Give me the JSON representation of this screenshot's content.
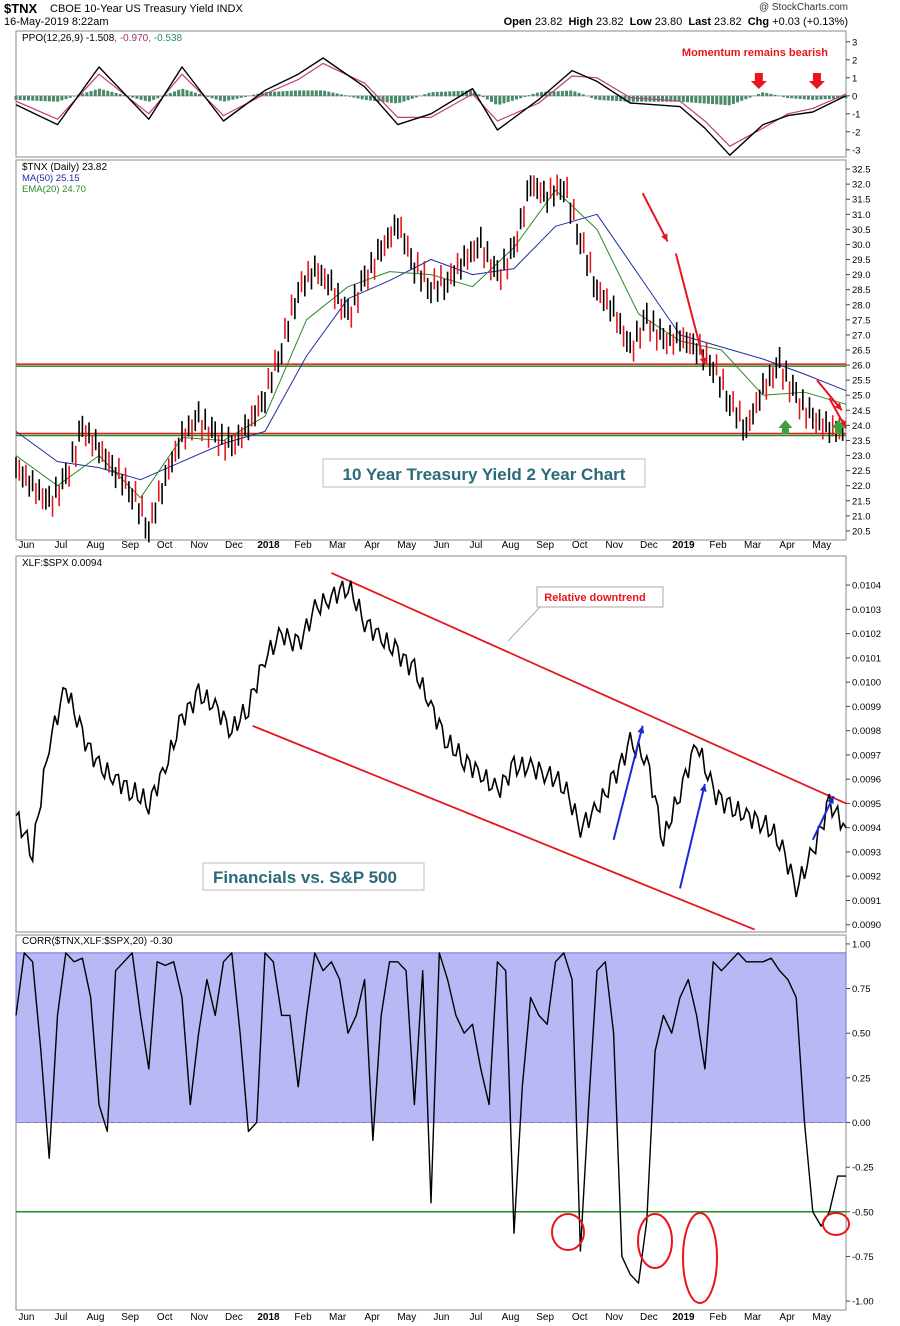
{
  "header": {
    "symbol": "$TNX",
    "name": "CBOE 10-Year US Treasury Yield INDX",
    "date": "16-May-2019 8:22am",
    "brand": "@ StockCharts.com",
    "open_label": "Open",
    "open": "23.82",
    "high_label": "High",
    "high": "23.82",
    "low_label": "Low",
    "low": "23.80",
    "last_label": "Last",
    "last": "23.82",
    "chg_label": "Chg",
    "chg": "+0.03 (+0.13%)"
  },
  "colors": {
    "red": "#e8141e",
    "green": "#1e8c1e",
    "blue": "#1a2bd6",
    "ma": "#1f2ba8",
    "ema": "#2a8a2a",
    "fill": "#b8b8f5",
    "annot_bg": "#ffffff"
  },
  "x_axis_labels": [
    "Jun",
    "Jul",
    "Aug",
    "Sep",
    "Oct",
    "Nov",
    "Dec",
    "2018",
    "Feb",
    "Mar",
    "Apr",
    "May",
    "Jun",
    "Jul",
    "Aug",
    "Sep",
    "Oct",
    "Nov",
    "Dec",
    "2019",
    "Feb",
    "Mar",
    "Apr",
    "May"
  ],
  "x_axis_bold": [
    "2018",
    "2019"
  ],
  "chart_data": [
    {
      "id": "ppo",
      "type": "line",
      "title": "PPO(12,26,9)",
      "values_text": [
        "-1.508",
        ",",
        "-0.970",
        ",",
        "-0.538"
      ],
      "ylim": [
        -3.4,
        3.6
      ],
      "yticks": [
        "3",
        "2",
        "1",
        "0",
        "-1",
        "-2",
        "-3"
      ],
      "annotation": "Momentum remains bearish",
      "series": [
        {
          "key": "ppo",
          "x": [
            0,
            0.05,
            0.1,
            0.16,
            0.2,
            0.25,
            0.3,
            0.34,
            0.37,
            0.42,
            0.46,
            0.5,
            0.55,
            0.58,
            0.63,
            0.67,
            0.7,
            0.74,
            0.8,
            0.83,
            0.86,
            0.9,
            0.93,
            0.96,
            1.0
          ],
          "y": [
            -0.5,
            -1.6,
            1.6,
            -1.3,
            1.6,
            -1.4,
            0.3,
            1.2,
            2.1,
            0.5,
            -1.6,
            -1.0,
            0.4,
            -1.9,
            -0.2,
            1.4,
            0.8,
            -0.4,
            -0.6,
            -1.8,
            -3.3,
            -1.6,
            -1.1,
            -0.9,
            0.0
          ]
        },
        {
          "key": "signal",
          "x": [
            0,
            0.05,
            0.1,
            0.16,
            0.2,
            0.25,
            0.3,
            0.34,
            0.37,
            0.42,
            0.46,
            0.5,
            0.55,
            0.58,
            0.63,
            0.67,
            0.7,
            0.74,
            0.8,
            0.83,
            0.86,
            0.9,
            0.93,
            0.96,
            1.0
          ],
          "y": [
            -0.3,
            -1.3,
            1.2,
            -1.0,
            1.2,
            -1.1,
            0.1,
            0.9,
            1.8,
            0.7,
            -1.2,
            -1.2,
            0.1,
            -1.4,
            -0.4,
            1.1,
            1.0,
            -0.1,
            -0.3,
            -1.4,
            -2.8,
            -1.8,
            -1.0,
            -0.7,
            0.1
          ]
        }
      ]
    },
    {
      "id": "tnx",
      "type": "line",
      "title": "$TNX (Daily)",
      "last": "23.82",
      "legend": [
        {
          "name": "MA(50)",
          "value": "25.15"
        },
        {
          "name": "EMA(20)",
          "value": "24.70"
        }
      ],
      "ylim": [
        20.2,
        32.8
      ],
      "yticks": [
        "32.5",
        "32.0",
        "31.5",
        "31.0",
        "30.5",
        "30.0",
        "29.5",
        "29.0",
        "28.5",
        "28.0",
        "27.5",
        "27.0",
        "26.5",
        "26.0",
        "25.5",
        "25.0",
        "24.5",
        "24.0",
        "23.5",
        "23.0",
        "22.5",
        "22.0",
        "21.5",
        "21.0",
        "20.5"
      ],
      "support_levels": [
        26.0,
        23.7
      ],
      "annotation": "10 Year Treasury Yield 2 Year Chart",
      "price": {
        "x": [
          0.0,
          0.02,
          0.04,
          0.06,
          0.08,
          0.1,
          0.12,
          0.14,
          0.16,
          0.18,
          0.2,
          0.22,
          0.24,
          0.26,
          0.28,
          0.3,
          0.32,
          0.34,
          0.36,
          0.38,
          0.4,
          0.42,
          0.44,
          0.46,
          0.48,
          0.5,
          0.52,
          0.54,
          0.56,
          0.58,
          0.6,
          0.62,
          0.64,
          0.66,
          0.68,
          0.7,
          0.72,
          0.74,
          0.76,
          0.78,
          0.8,
          0.82,
          0.84,
          0.86,
          0.88,
          0.9,
          0.92,
          0.94,
          0.96,
          0.98,
          1.0
        ],
        "y": [
          22.6,
          22.0,
          21.4,
          22.2,
          23.9,
          23.2,
          22.5,
          21.8,
          20.6,
          22.3,
          23.6,
          24.2,
          23.6,
          23.3,
          24.0,
          25.0,
          26.6,
          28.5,
          29.2,
          28.6,
          27.6,
          28.8,
          29.8,
          30.7,
          29.3,
          28.6,
          28.8,
          29.5,
          30.0,
          28.9,
          29.8,
          32.0,
          31.6,
          32.0,
          30.2,
          28.5,
          27.8,
          26.5,
          27.5,
          26.8,
          26.9,
          26.6,
          26.0,
          24.8,
          23.9,
          25.2,
          26.0,
          24.9,
          24.2,
          23.9,
          23.82
        ]
      },
      "ma50": {
        "x": [
          0.0,
          0.05,
          0.1,
          0.15,
          0.2,
          0.25,
          0.3,
          0.35,
          0.4,
          0.45,
          0.5,
          0.55,
          0.6,
          0.65,
          0.7,
          0.75,
          0.8,
          0.85,
          0.9,
          0.95,
          1.0
        ],
        "y": [
          23.8,
          22.8,
          22.6,
          22.2,
          22.8,
          23.4,
          23.8,
          26.3,
          28.2,
          28.8,
          29.5,
          29.0,
          29.2,
          30.6,
          31.0,
          29.0,
          27.0,
          26.6,
          26.2,
          25.7,
          25.15
        ]
      },
      "ema20": {
        "x": [
          0.0,
          0.05,
          0.1,
          0.15,
          0.2,
          0.25,
          0.3,
          0.35,
          0.4,
          0.45,
          0.5,
          0.55,
          0.6,
          0.65,
          0.7,
          0.75,
          0.8,
          0.85,
          0.9,
          0.95,
          1.0
        ],
        "y": [
          23.0,
          22.0,
          23.0,
          21.6,
          23.6,
          23.5,
          24.3,
          27.5,
          28.6,
          29.1,
          29.0,
          28.6,
          29.9,
          31.8,
          30.5,
          27.7,
          26.8,
          26.5,
          25.0,
          25.1,
          24.7
        ]
      },
      "arrows": [
        {
          "color": "red",
          "from": [
            0.755,
            31.7
          ],
          "to": [
            0.785,
            30.1
          ]
        },
        {
          "color": "red",
          "from": [
            0.795,
            29.7
          ],
          "to": [
            0.83,
            26.0
          ]
        },
        {
          "color": "red",
          "from": [
            0.965,
            25.5
          ],
          "to": [
            0.995,
            24.5
          ]
        },
        {
          "color": "red",
          "from": [
            0.98,
            24.9
          ],
          "to": [
            1.0,
            23.9
          ]
        }
      ],
      "marks": [
        {
          "color": "red",
          "type": "down",
          "at": [
            0.0,
            0.0
          ]
        }
      ]
    },
    {
      "id": "xlf",
      "type": "line",
      "title": "XLF:$SPX",
      "last": "0.0094",
      "ylim": [
        0.00897,
        0.01052
      ],
      "yticks": [
        "0.0104",
        "0.0103",
        "0.0102",
        "0.0101",
        "0.0100",
        "0.0099",
        "0.0098",
        "0.0097",
        "0.0096",
        "0.0095",
        "0.0094",
        "0.0093",
        "0.0092",
        "0.0091",
        "0.0090"
      ],
      "annotation": "Financials vs. S&P 500",
      "callout": "Relative downtrend",
      "series": {
        "x": [
          0.0,
          0.02,
          0.04,
          0.06,
          0.08,
          0.1,
          0.12,
          0.14,
          0.16,
          0.18,
          0.2,
          0.22,
          0.24,
          0.26,
          0.28,
          0.3,
          0.32,
          0.34,
          0.36,
          0.38,
          0.4,
          0.42,
          0.44,
          0.46,
          0.48,
          0.5,
          0.52,
          0.54,
          0.56,
          0.58,
          0.6,
          0.62,
          0.64,
          0.66,
          0.68,
          0.7,
          0.72,
          0.74,
          0.76,
          0.78,
          0.8,
          0.82,
          0.84,
          0.86,
          0.88,
          0.9,
          0.92,
          0.94,
          0.96,
          0.98,
          1.0
        ],
        "y": [
          0.00945,
          0.0093,
          0.00975,
          0.00998,
          0.00978,
          0.00965,
          0.0096,
          0.00955,
          0.0095,
          0.00965,
          0.00985,
          0.00995,
          0.0099,
          0.0098,
          0.0099,
          0.0101,
          0.0102,
          0.01015,
          0.0103,
          0.01035,
          0.0104,
          0.01025,
          0.01018,
          0.01012,
          0.01005,
          0.0099,
          0.00975,
          0.00968,
          0.00962,
          0.00955,
          0.00965,
          0.00965,
          0.00962,
          0.00958,
          0.0094,
          0.00948,
          0.0096,
          0.00975,
          0.00968,
          0.00935,
          0.00955,
          0.00975,
          0.00955,
          0.00948,
          0.00945,
          0.00942,
          0.00935,
          0.00915,
          0.0093,
          0.0095,
          0.0094
        ]
      },
      "trendlines": [
        {
          "from": [
            0.38,
            0.01045
          ],
          "to": [
            1.0,
            0.0095
          ]
        },
        {
          "from": [
            0.285,
            0.00982
          ],
          "to": [
            0.89,
            0.00898
          ]
        }
      ],
      "arrows": [
        {
          "color": "blue",
          "from": [
            0.72,
            0.00935
          ],
          "to": [
            0.755,
            0.00982
          ]
        },
        {
          "color": "blue",
          "from": [
            0.8,
            0.00915
          ],
          "to": [
            0.83,
            0.00958
          ]
        },
        {
          "color": "blue",
          "from": [
            0.96,
            0.00935
          ],
          "to": [
            0.985,
            0.00953
          ]
        }
      ]
    },
    {
      "id": "corr",
      "type": "line",
      "title": "CORR($TNX,XLF:$SPX,20)",
      "last": "-0.30",
      "ylim": [
        -1.05,
        1.05
      ],
      "yticks": [
        "1.00",
        "0.75",
        "0.50",
        "0.25",
        "0.00",
        "-0.25",
        "-0.50",
        "-0.75",
        "-1.00"
      ],
      "band": [
        0.0,
        0.95
      ],
      "hline": -0.5,
      "series": {
        "x": [
          0.0,
          0.01,
          0.02,
          0.03,
          0.04,
          0.05,
          0.06,
          0.07,
          0.08,
          0.09,
          0.1,
          0.11,
          0.12,
          0.13,
          0.14,
          0.15,
          0.16,
          0.17,
          0.18,
          0.19,
          0.2,
          0.21,
          0.22,
          0.23,
          0.24,
          0.25,
          0.26,
          0.27,
          0.28,
          0.29,
          0.3,
          0.31,
          0.32,
          0.33,
          0.34,
          0.35,
          0.36,
          0.37,
          0.38,
          0.39,
          0.4,
          0.41,
          0.42,
          0.43,
          0.44,
          0.45,
          0.46,
          0.47,
          0.48,
          0.49,
          0.5,
          0.51,
          0.52,
          0.53,
          0.54,
          0.55,
          0.56,
          0.57,
          0.58,
          0.59,
          0.6,
          0.61,
          0.62,
          0.63,
          0.64,
          0.65,
          0.66,
          0.67,
          0.68,
          0.69,
          0.7,
          0.71,
          0.72,
          0.73,
          0.74,
          0.75,
          0.76,
          0.77,
          0.78,
          0.79,
          0.8,
          0.81,
          0.82,
          0.83,
          0.84,
          0.85,
          0.86,
          0.87,
          0.88,
          0.89,
          0.9,
          0.91,
          0.92,
          0.93,
          0.94,
          0.95,
          0.96,
          0.97,
          0.98,
          0.99,
          1.0
        ],
        "y": [
          0.6,
          0.95,
          0.9,
          0.4,
          -0.2,
          0.6,
          0.95,
          0.9,
          0.92,
          0.7,
          0.1,
          -0.05,
          0.85,
          0.9,
          0.95,
          0.6,
          0.3,
          0.9,
          0.88,
          0.9,
          0.7,
          0.1,
          0.5,
          0.8,
          0.6,
          0.9,
          0.95,
          0.5,
          -0.05,
          0.0,
          0.95,
          0.9,
          0.6,
          0.6,
          0.2,
          0.6,
          0.95,
          0.85,
          0.9,
          0.8,
          0.5,
          0.6,
          0.8,
          -0.1,
          0.6,
          0.9,
          0.9,
          0.85,
          0.1,
          0.85,
          -0.45,
          0.95,
          0.8,
          0.6,
          0.5,
          0.55,
          0.3,
          0.1,
          0.9,
          0.85,
          -0.62,
          0.2,
          0.7,
          0.6,
          0.55,
          0.9,
          0.95,
          0.8,
          -0.72,
          0.1,
          0.85,
          0.9,
          0.5,
          -0.75,
          -0.85,
          -0.9,
          -0.55,
          0.4,
          0.6,
          0.5,
          0.7,
          0.8,
          0.6,
          0.3,
          0.9,
          0.85,
          0.9,
          0.95,
          0.9,
          0.9,
          0.9,
          0.92,
          0.85,
          0.8,
          0.7,
          0.0,
          -0.5,
          -0.58,
          -0.5,
          -0.3,
          -0.3
        ]
      },
      "circles": [
        0.668,
        0.77,
        0.83,
        0.985
      ]
    }
  ]
}
